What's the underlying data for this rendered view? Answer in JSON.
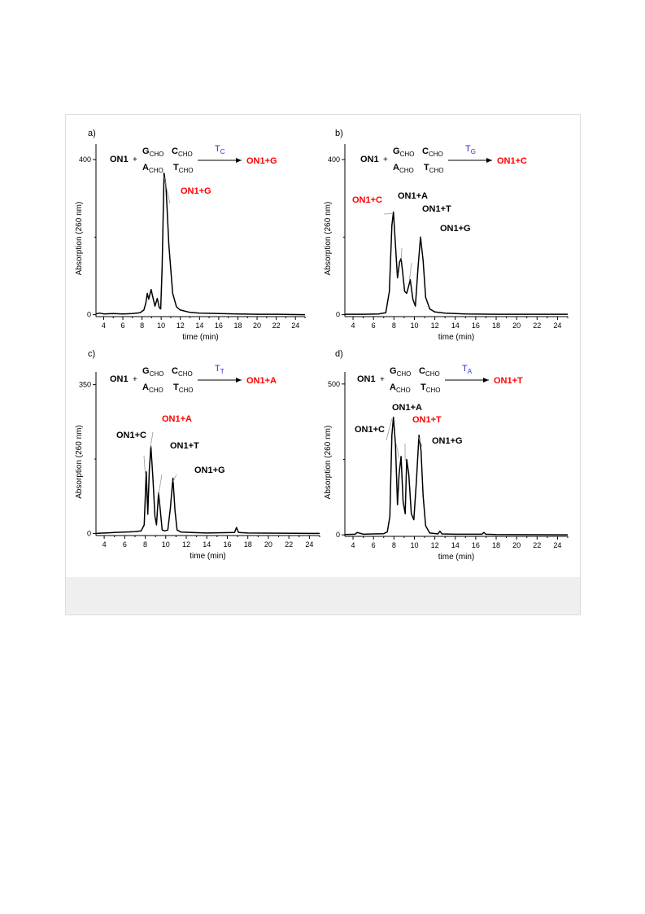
{
  "colors": {
    "highlight": "#ff0000",
    "reagent": "#2a2ae0",
    "trace": "#000000",
    "frame_border": "#dcdcdc",
    "caption_band": "#efefef"
  },
  "chart_data": [
    {
      "type": "line",
      "panel": "a)",
      "xlabel": "time (min)",
      "ylabel": "Absorption (260 nm)",
      "xlim": [
        3.2,
        25
      ],
      "xticks": [
        4,
        6,
        8,
        10,
        12,
        14,
        16,
        18,
        20,
        22,
        24
      ],
      "ylim": [
        -5,
        440
      ],
      "yticks": [
        0,
        400
      ],
      "scheme": {
        "reactant": "ON1",
        "plus": "+",
        "sets": [
          "G",
          "C",
          "A",
          "T"
        ],
        "subscript": "CHO",
        "reagent": "T",
        "reagent_sub": "C",
        "product": "ON1+G"
      },
      "annotations": [
        {
          "text": "ON1+G",
          "x": 10.3,
          "y": 360,
          "highlight": true
        }
      ],
      "series": [
        {
          "x": [
            3.2,
            3.6,
            4.0,
            5.0,
            6.0,
            7.0,
            7.8,
            8.2,
            8.4,
            8.55,
            8.7,
            8.95,
            9.1,
            9.35,
            9.6,
            9.8,
            9.95,
            10.1,
            10.3,
            10.5,
            10.8,
            11.2,
            11.6,
            12.0,
            13.0,
            14.0,
            16.0,
            18.0,
            20.0,
            22.0,
            25.0
          ],
          "y": [
            2,
            4,
            2,
            3,
            2,
            3,
            5,
            12,
            30,
            55,
            40,
            65,
            48,
            22,
            42,
            18,
            15,
            120,
            365,
            330,
            180,
            55,
            20,
            12,
            6,
            4,
            3,
            2,
            1,
            1,
            0
          ]
        }
      ]
    },
    {
      "type": "line",
      "panel": "b)",
      "xlabel": "time (min)",
      "ylabel": "Absorption (260 nm)",
      "xlim": [
        3.2,
        25
      ],
      "xticks": [
        4,
        6,
        8,
        10,
        12,
        14,
        16,
        18,
        20,
        22,
        24
      ],
      "ylim": [
        -5,
        440
      ],
      "yticks": [
        0,
        400
      ],
      "scheme": {
        "reactant": "ON1",
        "plus": "+",
        "sets": [
          "G",
          "C",
          "A",
          "T"
        ],
        "subscript": "CHO",
        "reagent": "T",
        "reagent_sub": "G",
        "product": "ON1+C"
      },
      "annotations": [
        {
          "text": "ON1+C",
          "x": 7.9,
          "y": 265,
          "highlight": true
        },
        {
          "text": "ON1+A",
          "x": 8.7,
          "y": 145,
          "highlight": false
        },
        {
          "text": "ON1+T",
          "x": 9.5,
          "y": 90,
          "highlight": false
        },
        {
          "text": "ON1+G",
          "x": 10.6,
          "y": 200,
          "highlight": false
        }
      ],
      "series": [
        {
          "x": [
            3.2,
            5.0,
            6.5,
            7.2,
            7.55,
            7.8,
            7.95,
            8.15,
            8.35,
            8.55,
            8.7,
            8.85,
            9.05,
            9.25,
            9.45,
            9.6,
            9.85,
            10.1,
            10.35,
            10.6,
            10.85,
            11.1,
            11.5,
            12.0,
            13.0,
            15.0,
            18.0,
            25.0
          ],
          "y": [
            1,
            1,
            2,
            5,
            60,
            230,
            265,
            180,
            95,
            135,
            145,
            110,
            60,
            55,
            75,
            90,
            40,
            22,
            120,
            200,
            140,
            45,
            15,
            7,
            4,
            2,
            1,
            1
          ]
        }
      ]
    },
    {
      "type": "line",
      "panel": "c)",
      "xlabel": "time (min)",
      "ylabel": "Absorption (260 nm)",
      "xlim": [
        3.2,
        25
      ],
      "xticks": [
        4,
        6,
        8,
        10,
        12,
        14,
        16,
        18,
        20,
        22,
        24
      ],
      "ylim": [
        -5,
        380
      ],
      "yticks": [
        0,
        350
      ],
      "scheme": {
        "reactant": "ON1",
        "plus": "+",
        "sets": [
          "G",
          "C",
          "A",
          "T"
        ],
        "subscript": "CHO",
        "reagent": "T",
        "reagent_sub": "T",
        "product": "ON1+A"
      },
      "annotations": [
        {
          "text": "ON1+C",
          "x": 8.0,
          "y": 145,
          "highlight": false
        },
        {
          "text": "ON1+A",
          "x": 8.5,
          "y": 205,
          "highlight": true
        },
        {
          "text": "ON1+T",
          "x": 9.3,
          "y": 95,
          "highlight": false
        },
        {
          "text": "ON1+G",
          "x": 10.7,
          "y": 125,
          "highlight": false
        }
      ],
      "series": [
        {
          "x": [
            3.2,
            5.0,
            6.0,
            7.0,
            7.6,
            7.9,
            8.1,
            8.25,
            8.4,
            8.55,
            8.75,
            8.95,
            9.1,
            9.3,
            9.45,
            9.65,
            9.9,
            10.2,
            10.45,
            10.7,
            10.9,
            11.1,
            11.5,
            12.5,
            14.0,
            16.7,
            16.9,
            17.1,
            18.0,
            25.0
          ],
          "y": [
            0,
            2,
            3,
            4,
            6,
            20,
            145,
            45,
            150,
            205,
            130,
            40,
            20,
            95,
            60,
            8,
            6,
            8,
            60,
            130,
            55,
            8,
            3,
            2,
            1,
            2,
            14,
            2,
            1,
            0
          ]
        }
      ]
    },
    {
      "type": "line",
      "panel": "d)",
      "xlabel": "time (min)",
      "ylabel": "Absorption (260 nm)",
      "xlim": [
        3.2,
        25
      ],
      "xticks": [
        4,
        6,
        8,
        10,
        12,
        14,
        16,
        18,
        20,
        22,
        24
      ],
      "ylim": [
        -5,
        540
      ],
      "yticks": [
        0,
        500
      ],
      "scheme": {
        "reactant": "ON1",
        "plus": "+",
        "sets": [
          "G",
          "C",
          "A",
          "T"
        ],
        "subscript": "CHO",
        "reagent": "T",
        "reagent_sub": "A",
        "product": "ON1+T"
      },
      "annotations": [
        {
          "text": "ON1+C",
          "x": 7.8,
          "y": 390,
          "highlight": false
        },
        {
          "text": "ON1+A",
          "x": 8.5,
          "y": 260,
          "highlight": false
        },
        {
          "text": "ON1+T",
          "x": 9.1,
          "y": 250,
          "highlight": true
        },
        {
          "text": "ON1+G",
          "x": 10.4,
          "y": 330,
          "highlight": false
        }
      ],
      "series": [
        {
          "x": [
            3.2,
            4.2,
            4.4,
            5.0,
            6.0,
            7.0,
            7.35,
            7.6,
            7.8,
            7.95,
            8.15,
            8.35,
            8.5,
            8.7,
            8.9,
            9.1,
            9.25,
            9.45,
            9.7,
            9.95,
            10.2,
            10.45,
            10.65,
            10.85,
            11.1,
            11.5,
            12.3,
            12.5,
            12.7,
            14.0,
            16.6,
            16.8,
            17.0,
            18.0,
            25.0
          ],
          "y": [
            1,
            2,
            8,
            2,
            3,
            4,
            10,
            60,
            330,
            390,
            300,
            100,
            200,
            260,
            110,
            70,
            250,
            200,
            70,
            50,
            180,
            330,
            280,
            130,
            30,
            6,
            3,
            12,
            3,
            2,
            2,
            8,
            2,
            1,
            0
          ]
        }
      ]
    }
  ]
}
